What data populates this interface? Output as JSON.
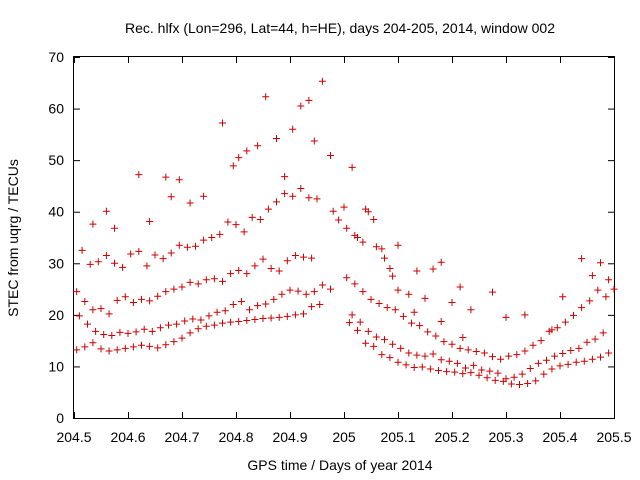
{
  "chart_data": {
    "type": "scatter",
    "title": "Rec. hlfx (Lon=296, Lat=44, h=HE), days 204-205, 2014, window 002",
    "xlabel": "GPS time / Days of year 2014",
    "ylabel": "STEC from uqrg / TECUs",
    "xlim": [
      204.5,
      205.5
    ],
    "ylim": [
      0,
      70
    ],
    "xticks": [
      204.5,
      204.6,
      204.7,
      204.8,
      204.9,
      205,
      205.1,
      205.2,
      205.3,
      205.4,
      205.5
    ],
    "xtick_labels": [
      "204.5",
      "204.6",
      "204.7",
      "204.8",
      "204.9",
      "205",
      "205.1",
      "205.2",
      "205.3",
      "205.4",
      "205.5"
    ],
    "yticks": [
      0,
      10,
      20,
      30,
      40,
      50,
      60,
      70
    ],
    "ytick_labels": [
      "0",
      "10",
      "20",
      "30",
      "40",
      "50",
      "60",
      "70"
    ],
    "grid": false,
    "legend": "none",
    "marker": "+",
    "color": "#cc0000",
    "series": [
      {
        "values": [
          [
            204.505,
            13.2
          ],
          [
            204.52,
            13.8
          ],
          [
            204.535,
            14.6
          ],
          [
            204.55,
            13.4
          ],
          [
            204.565,
            13.0
          ],
          [
            204.58,
            13.2
          ],
          [
            204.595,
            13.5
          ],
          [
            204.61,
            13.8
          ],
          [
            204.625,
            14.1
          ],
          [
            204.64,
            13.9
          ],
          [
            204.655,
            13.6
          ],
          [
            204.67,
            14.2
          ],
          [
            204.685,
            14.8
          ],
          [
            204.7,
            15.5
          ],
          [
            204.715,
            16.5
          ],
          [
            204.73,
            17.3
          ],
          [
            204.745,
            17.8
          ],
          [
            204.76,
            18.0
          ],
          [
            204.775,
            18.4
          ],
          [
            204.79,
            18.6
          ],
          [
            204.805,
            18.7
          ],
          [
            204.82,
            18.9
          ],
          [
            204.835,
            19.1
          ],
          [
            204.85,
            19.3
          ],
          [
            204.865,
            19.4
          ],
          [
            204.88,
            19.5
          ],
          [
            204.895,
            19.7
          ],
          [
            204.91,
            20.0
          ],
          [
            204.925,
            20.2
          ],
          [
            204.94,
            21.6
          ],
          [
            204.955,
            22.0
          ],
          [
            204.51,
            19.8
          ],
          [
            204.525,
            18.2
          ],
          [
            204.54,
            16.8
          ],
          [
            204.555,
            16.2
          ],
          [
            204.57,
            16.0
          ],
          [
            204.585,
            16.6
          ],
          [
            204.6,
            16.4
          ],
          [
            204.615,
            16.7
          ],
          [
            204.63,
            17.2
          ],
          [
            204.645,
            16.8
          ],
          [
            204.66,
            17.5
          ],
          [
            204.675,
            18.0
          ],
          [
            204.69,
            18.2
          ],
          [
            204.705,
            18.8
          ],
          [
            204.72,
            19.2
          ],
          [
            204.735,
            19.0
          ],
          [
            204.75,
            19.8
          ],
          [
            204.765,
            20.5
          ],
          [
            204.78,
            20.8
          ],
          [
            204.795,
            22.0
          ],
          [
            204.81,
            22.6
          ],
          [
            204.825,
            21.0
          ],
          [
            204.84,
            21.8
          ],
          [
            204.855,
            22.1
          ],
          [
            204.87,
            23.0
          ],
          [
            204.885,
            24.0
          ],
          [
            204.9,
            24.8
          ],
          [
            204.915,
            24.6
          ],
          [
            204.93,
            24.0
          ],
          [
            204.945,
            24.5
          ],
          [
            204.96,
            25.8
          ],
          [
            204.975,
            25.0
          ],
          [
            204.505,
            24.5
          ],
          [
            204.52,
            22.6
          ],
          [
            204.535,
            21.0
          ],
          [
            204.55,
            21.2
          ],
          [
            204.565,
            20.2
          ],
          [
            204.58,
            22.8
          ],
          [
            204.595,
            23.5
          ],
          [
            204.61,
            22.4
          ],
          [
            204.625,
            23.0
          ],
          [
            204.64,
            22.7
          ],
          [
            204.655,
            23.6
          ],
          [
            204.67,
            24.5
          ],
          [
            204.685,
            25.0
          ],
          [
            204.7,
            25.4
          ],
          [
            204.715,
            26.3
          ],
          [
            204.73,
            26.0
          ],
          [
            204.745,
            26.8
          ],
          [
            204.76,
            27.0
          ],
          [
            204.775,
            26.5
          ],
          [
            204.79,
            28.0
          ],
          [
            204.805,
            28.6
          ],
          [
            204.82,
            28.0
          ],
          [
            204.835,
            29.5
          ],
          [
            204.85,
            30.8
          ],
          [
            204.865,
            29.0
          ],
          [
            204.88,
            28.5
          ],
          [
            204.895,
            30.5
          ],
          [
            204.91,
            31.5
          ],
          [
            204.925,
            31.2
          ],
          [
            204.94,
            31.0
          ],
          [
            204.515,
            32.5
          ],
          [
            204.53,
            29.8
          ],
          [
            204.545,
            30.3
          ],
          [
            204.56,
            31.5
          ],
          [
            204.575,
            30.0
          ],
          [
            204.59,
            29.2
          ],
          [
            204.605,
            31.8
          ],
          [
            204.62,
            32.3
          ],
          [
            204.635,
            29.5
          ],
          [
            204.65,
            31.6
          ],
          [
            204.665,
            30.9
          ],
          [
            204.68,
            32.0
          ],
          [
            204.695,
            33.5
          ],
          [
            204.71,
            33.1
          ],
          [
            204.725,
            33.3
          ],
          [
            204.74,
            34.5
          ],
          [
            204.755,
            35.0
          ],
          [
            204.77,
            35.6
          ],
          [
            204.785,
            38.0
          ],
          [
            204.8,
            37.5
          ],
          [
            204.815,
            36.1
          ],
          [
            204.83,
            38.9
          ],
          [
            204.845,
            38.5
          ],
          [
            204.86,
            40.5
          ],
          [
            204.875,
            41.9
          ],
          [
            204.89,
            43.5
          ],
          [
            204.905,
            43.0
          ],
          [
            204.92,
            44.5
          ],
          [
            204.935,
            42.7
          ],
          [
            204.95,
            42.5
          ],
          [
            204.535,
            37.6
          ],
          [
            204.56,
            40.1
          ],
          [
            204.575,
            36.8
          ],
          [
            204.62,
            47.2
          ],
          [
            204.64,
            38.1
          ],
          [
            204.67,
            46.7
          ],
          [
            204.68,
            42.9
          ],
          [
            204.695,
            46.2
          ],
          [
            204.715,
            41.7
          ],
          [
            204.74,
            43.0
          ],
          [
            204.775,
            57.2
          ],
          [
            204.795,
            48.9
          ],
          [
            204.805,
            50.5
          ],
          [
            204.82,
            51.8
          ],
          [
            204.84,
            52.8
          ],
          [
            204.855,
            62.3
          ],
          [
            204.875,
            54.2
          ],
          [
            204.89,
            46.8
          ],
          [
            204.905,
            56.0
          ],
          [
            204.92,
            60.5
          ],
          [
            204.935,
            61.6
          ],
          [
            204.945,
            53.7
          ],
          [
            204.96,
            65.3
          ],
          [
            204.975,
            50.9
          ],
          [
            205.01,
            18.5
          ],
          [
            205.025,
            17.0
          ],
          [
            205.04,
            14.5
          ],
          [
            205.055,
            13.9
          ],
          [
            205.07,
            12.3
          ],
          [
            205.085,
            11.7
          ],
          [
            205.1,
            10.8
          ],
          [
            205.115,
            10.3
          ],
          [
            205.13,
            9.8
          ],
          [
            205.145,
            9.9
          ],
          [
            205.16,
            9.5
          ],
          [
            205.175,
            9.2
          ],
          [
            205.19,
            9.0
          ],
          [
            205.205,
            8.9
          ],
          [
            205.22,
            8.6
          ],
          [
            205.235,
            8.8
          ],
          [
            205.25,
            8.3
          ],
          [
            205.265,
            7.8
          ],
          [
            205.28,
            7.3
          ],
          [
            205.295,
            7.1
          ],
          [
            205.31,
            6.6
          ],
          [
            205.325,
            6.5
          ],
          [
            205.34,
            6.7
          ],
          [
            205.355,
            7.2
          ],
          [
            205.37,
            8.5
          ],
          [
            205.385,
            9.5
          ],
          [
            205.4,
            10.1
          ],
          [
            205.415,
            10.4
          ],
          [
            205.43,
            10.8
          ],
          [
            205.445,
            11.0
          ],
          [
            205.46,
            11.4
          ],
          [
            205.475,
            11.8
          ],
          [
            205.49,
            12.6
          ],
          [
            205.015,
            20.0
          ],
          [
            205.03,
            18.6
          ],
          [
            205.045,
            16.8
          ],
          [
            205.06,
            15.7
          ],
          [
            205.075,
            15.2
          ],
          [
            205.09,
            14.3
          ],
          [
            205.105,
            13.5
          ],
          [
            205.12,
            12.6
          ],
          [
            205.135,
            12.2
          ],
          [
            205.15,
            12.0
          ],
          [
            205.165,
            12.4
          ],
          [
            205.18,
            11.3
          ],
          [
            205.195,
            11.0
          ],
          [
            205.21,
            10.6
          ],
          [
            205.225,
            9.7
          ],
          [
            205.24,
            10.2
          ],
          [
            205.255,
            9.3
          ],
          [
            205.27,
            9.1
          ],
          [
            205.285,
            8.7
          ],
          [
            205.3,
            7.6
          ],
          [
            205.315,
            7.9
          ],
          [
            205.33,
            8.5
          ],
          [
            205.345,
            9.6
          ],
          [
            205.36,
            10.6
          ],
          [
            205.375,
            11.2
          ],
          [
            205.39,
            12.0
          ],
          [
            205.405,
            12.5
          ],
          [
            205.42,
            13.1
          ],
          [
            205.435,
            13.5
          ],
          [
            205.45,
            14.7
          ],
          [
            205.465,
            15.3
          ],
          [
            205.48,
            16.5
          ],
          [
            205.005,
            27.2
          ],
          [
            205.02,
            26.0
          ],
          [
            205.035,
            24.5
          ],
          [
            205.05,
            23.0
          ],
          [
            205.065,
            22.2
          ],
          [
            205.08,
            21.4
          ],
          [
            205.095,
            21.0
          ],
          [
            205.11,
            19.7
          ],
          [
            205.125,
            18.4
          ],
          [
            205.14,
            17.9
          ],
          [
            205.155,
            16.7
          ],
          [
            205.17,
            15.9
          ],
          [
            205.185,
            14.8
          ],
          [
            205.2,
            14.3
          ],
          [
            205.215,
            13.5
          ],
          [
            205.23,
            13.2
          ],
          [
            205.245,
            12.9
          ],
          [
            205.26,
            12.6
          ],
          [
            205.275,
            11.9
          ],
          [
            205.29,
            11.4
          ],
          [
            205.305,
            12.0
          ],
          [
            205.32,
            12.3
          ],
          [
            205.335,
            13.0
          ],
          [
            205.35,
            14.1
          ],
          [
            205.365,
            15.0
          ],
          [
            205.38,
            16.8
          ],
          [
            205.395,
            17.5
          ],
          [
            205.41,
            18.6
          ],
          [
            205.425,
            19.9
          ],
          [
            205.44,
            21.4
          ],
          [
            205.455,
            22.7
          ],
          [
            205.47,
            24.8
          ],
          [
            205.485,
            23.5
          ],
          [
            205.005,
            36.8
          ],
          [
            205.02,
            35.4
          ],
          [
            205.035,
            34.1
          ],
          [
            205.045,
            40.0
          ],
          [
            205.06,
            33.2
          ],
          [
            205.075,
            31.0
          ],
          [
            205.09,
            27.5
          ],
          [
            205.1,
            33.5
          ],
          [
            205.12,
            24.0
          ],
          [
            205.135,
            28.5
          ],
          [
            205.15,
            23.2
          ],
          [
            205.165,
            28.9
          ],
          [
            205.18,
            30.2
          ],
          [
            205.2,
            22.4
          ],
          [
            205.215,
            25.4
          ],
          [
            205.235,
            21.0
          ],
          [
            205.275,
            24.4
          ],
          [
            205.3,
            19.5
          ],
          [
            205.335,
            20.0
          ],
          [
            205.385,
            17.1
          ],
          [
            205.405,
            23.5
          ],
          [
            205.44,
            30.9
          ],
          [
            205.46,
            27.6
          ],
          [
            205.475,
            30.1
          ],
          [
            205.49,
            26.8
          ],
          [
            205.5,
            25.0
          ],
          [
            204.98,
            40.1
          ],
          [
            204.99,
            38.4
          ],
          [
            205.0,
            40.9
          ],
          [
            205.015,
            48.6
          ],
          [
            205.025,
            35.0
          ],
          [
            205.04,
            40.5
          ],
          [
            205.055,
            38.5
          ],
          [
            205.07,
            32.8
          ],
          [
            205.085,
            29.0
          ],
          [
            205.1,
            24.8
          ],
          [
            205.13,
            20.5
          ],
          [
            205.18,
            18.7
          ],
          [
            205.22,
            15.6
          ]
        ]
      }
    ]
  }
}
